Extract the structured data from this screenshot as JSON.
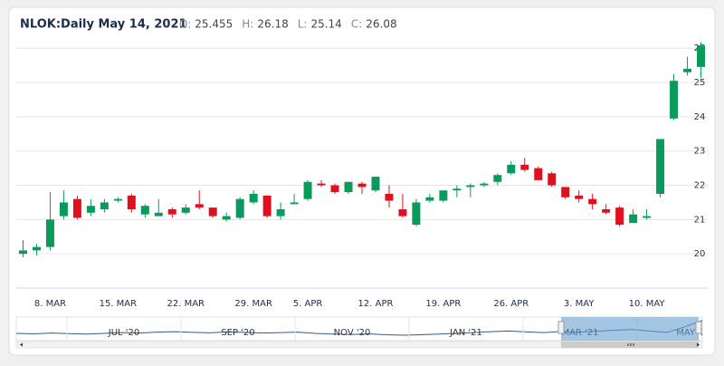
{
  "chart_data": {
    "type": "candlestick",
    "title": "NLOK:Daily May 14, 2021",
    "ohlc_header": [
      {
        "label": "O:",
        "value": 25.455
      },
      {
        "label": "H:",
        "value": 26.18
      },
      {
        "label": "L:",
        "value": 25.14
      },
      {
        "label": "C:",
        "value": 26.08
      }
    ],
    "categories": [
      null,
      null,
      "8. MAR",
      null,
      null,
      null,
      null,
      "15. MAR",
      null,
      null,
      null,
      null,
      "22. MAR",
      null,
      null,
      null,
      null,
      "29. MAR",
      null,
      null,
      null,
      "5. APR",
      null,
      null,
      null,
      null,
      "12. APR",
      null,
      null,
      null,
      null,
      "19. APR",
      null,
      null,
      null,
      null,
      "26. APR",
      null,
      null,
      null,
      null,
      "3. MAY",
      null,
      null,
      null,
      null,
      "10. MAY",
      null,
      null,
      null,
      null
    ],
    "open": [
      20.0,
      20.1,
      20.2,
      21.1,
      21.6,
      21.2,
      21.3,
      21.55,
      21.7,
      21.15,
      21.1,
      21.3,
      21.2,
      21.45,
      21.35,
      21.0,
      21.05,
      21.5,
      21.7,
      21.1,
      21.45,
      21.6,
      22.05,
      22.0,
      21.8,
      22.05,
      21.85,
      21.75,
      21.3,
      20.85,
      21.55,
      21.55,
      21.85,
      21.95,
      22.0,
      22.1,
      22.35,
      22.6,
      22.5,
      22.35,
      21.95,
      21.7,
      21.6,
      21.3,
      21.35,
      20.9,
      21.05,
      21.75,
      23.95,
      25.3,
      25.455
    ],
    "high": [
      20.4,
      20.3,
      21.8,
      21.85,
      21.7,
      21.6,
      21.6,
      21.65,
      21.75,
      21.45,
      21.6,
      21.35,
      21.45,
      21.85,
      21.35,
      21.2,
      21.65,
      21.85,
      21.7,
      21.5,
      21.75,
      22.15,
      22.15,
      22.05,
      22.1,
      22.1,
      22.25,
      22.0,
      21.75,
      21.6,
      21.75,
      21.85,
      22.0,
      22.05,
      22.1,
      22.35,
      22.7,
      22.8,
      22.55,
      22.4,
      21.95,
      21.85,
      21.75,
      21.45,
      21.4,
      21.3,
      21.3,
      23.35,
      25.25,
      25.75,
      26.18
    ],
    "low": [
      19.9,
      19.95,
      20.1,
      21.0,
      21.0,
      21.1,
      21.2,
      21.5,
      21.2,
      21.05,
      21.1,
      21.05,
      21.15,
      21.3,
      21.05,
      20.95,
      21.0,
      21.45,
      21.05,
      21.0,
      21.45,
      21.55,
      21.95,
      21.75,
      21.75,
      21.75,
      21.8,
      21.35,
      21.05,
      20.8,
      21.5,
      21.5,
      21.65,
      21.65,
      21.95,
      22.0,
      22.3,
      22.4,
      22.15,
      21.95,
      21.6,
      21.5,
      21.3,
      21.15,
      20.8,
      20.9,
      21.0,
      21.65,
      23.9,
      25.2,
      25.14
    ],
    "close": [
      20.1,
      20.2,
      21.0,
      21.5,
      21.05,
      21.4,
      21.5,
      21.6,
      21.3,
      21.4,
      21.2,
      21.15,
      21.35,
      21.35,
      21.1,
      21.1,
      21.6,
      21.75,
      21.1,
      21.3,
      21.5,
      22.1,
      22.0,
      21.8,
      22.1,
      21.95,
      22.25,
      21.55,
      21.1,
      21.5,
      21.65,
      21.85,
      21.9,
      22.0,
      22.05,
      22.3,
      22.6,
      22.45,
      22.15,
      22.0,
      21.65,
      21.6,
      21.45,
      21.2,
      20.85,
      21.15,
      21.1,
      23.35,
      25.05,
      25.4,
      26.08
    ],
    "up_color": "#0a9a5c",
    "down_color": "#e0101e",
    "ylim": [
      19,
      26.35
    ],
    "yticks": [
      20,
      21,
      22,
      23,
      24,
      25,
      26
    ],
    "grid": true,
    "navigator": {
      "labels": [
        "JUL '20",
        "SEP '20",
        "NOV '20",
        "JAN '21",
        "MAR '21",
        "MAY '21"
      ],
      "values": [
        20.6,
        20.4,
        20.7,
        20.5,
        20.3,
        20.6,
        20.9,
        20.7,
        21.1,
        21.3,
        21.0,
        20.8,
        21.2,
        21.0,
        20.7,
        20.9,
        21.1,
        20.6,
        20.3,
        20.1,
        20.4,
        20.0,
        19.8,
        20.0,
        20.3,
        20.6,
        20.9,
        21.3,
        21.6,
        21.2,
        20.9,
        21.4,
        21.1,
        21.5,
        21.9,
        22.2,
        21.6,
        21.0,
        23.3,
        26.1
      ],
      "ylim": [
        17.5,
        27.5
      ]
    }
  }
}
